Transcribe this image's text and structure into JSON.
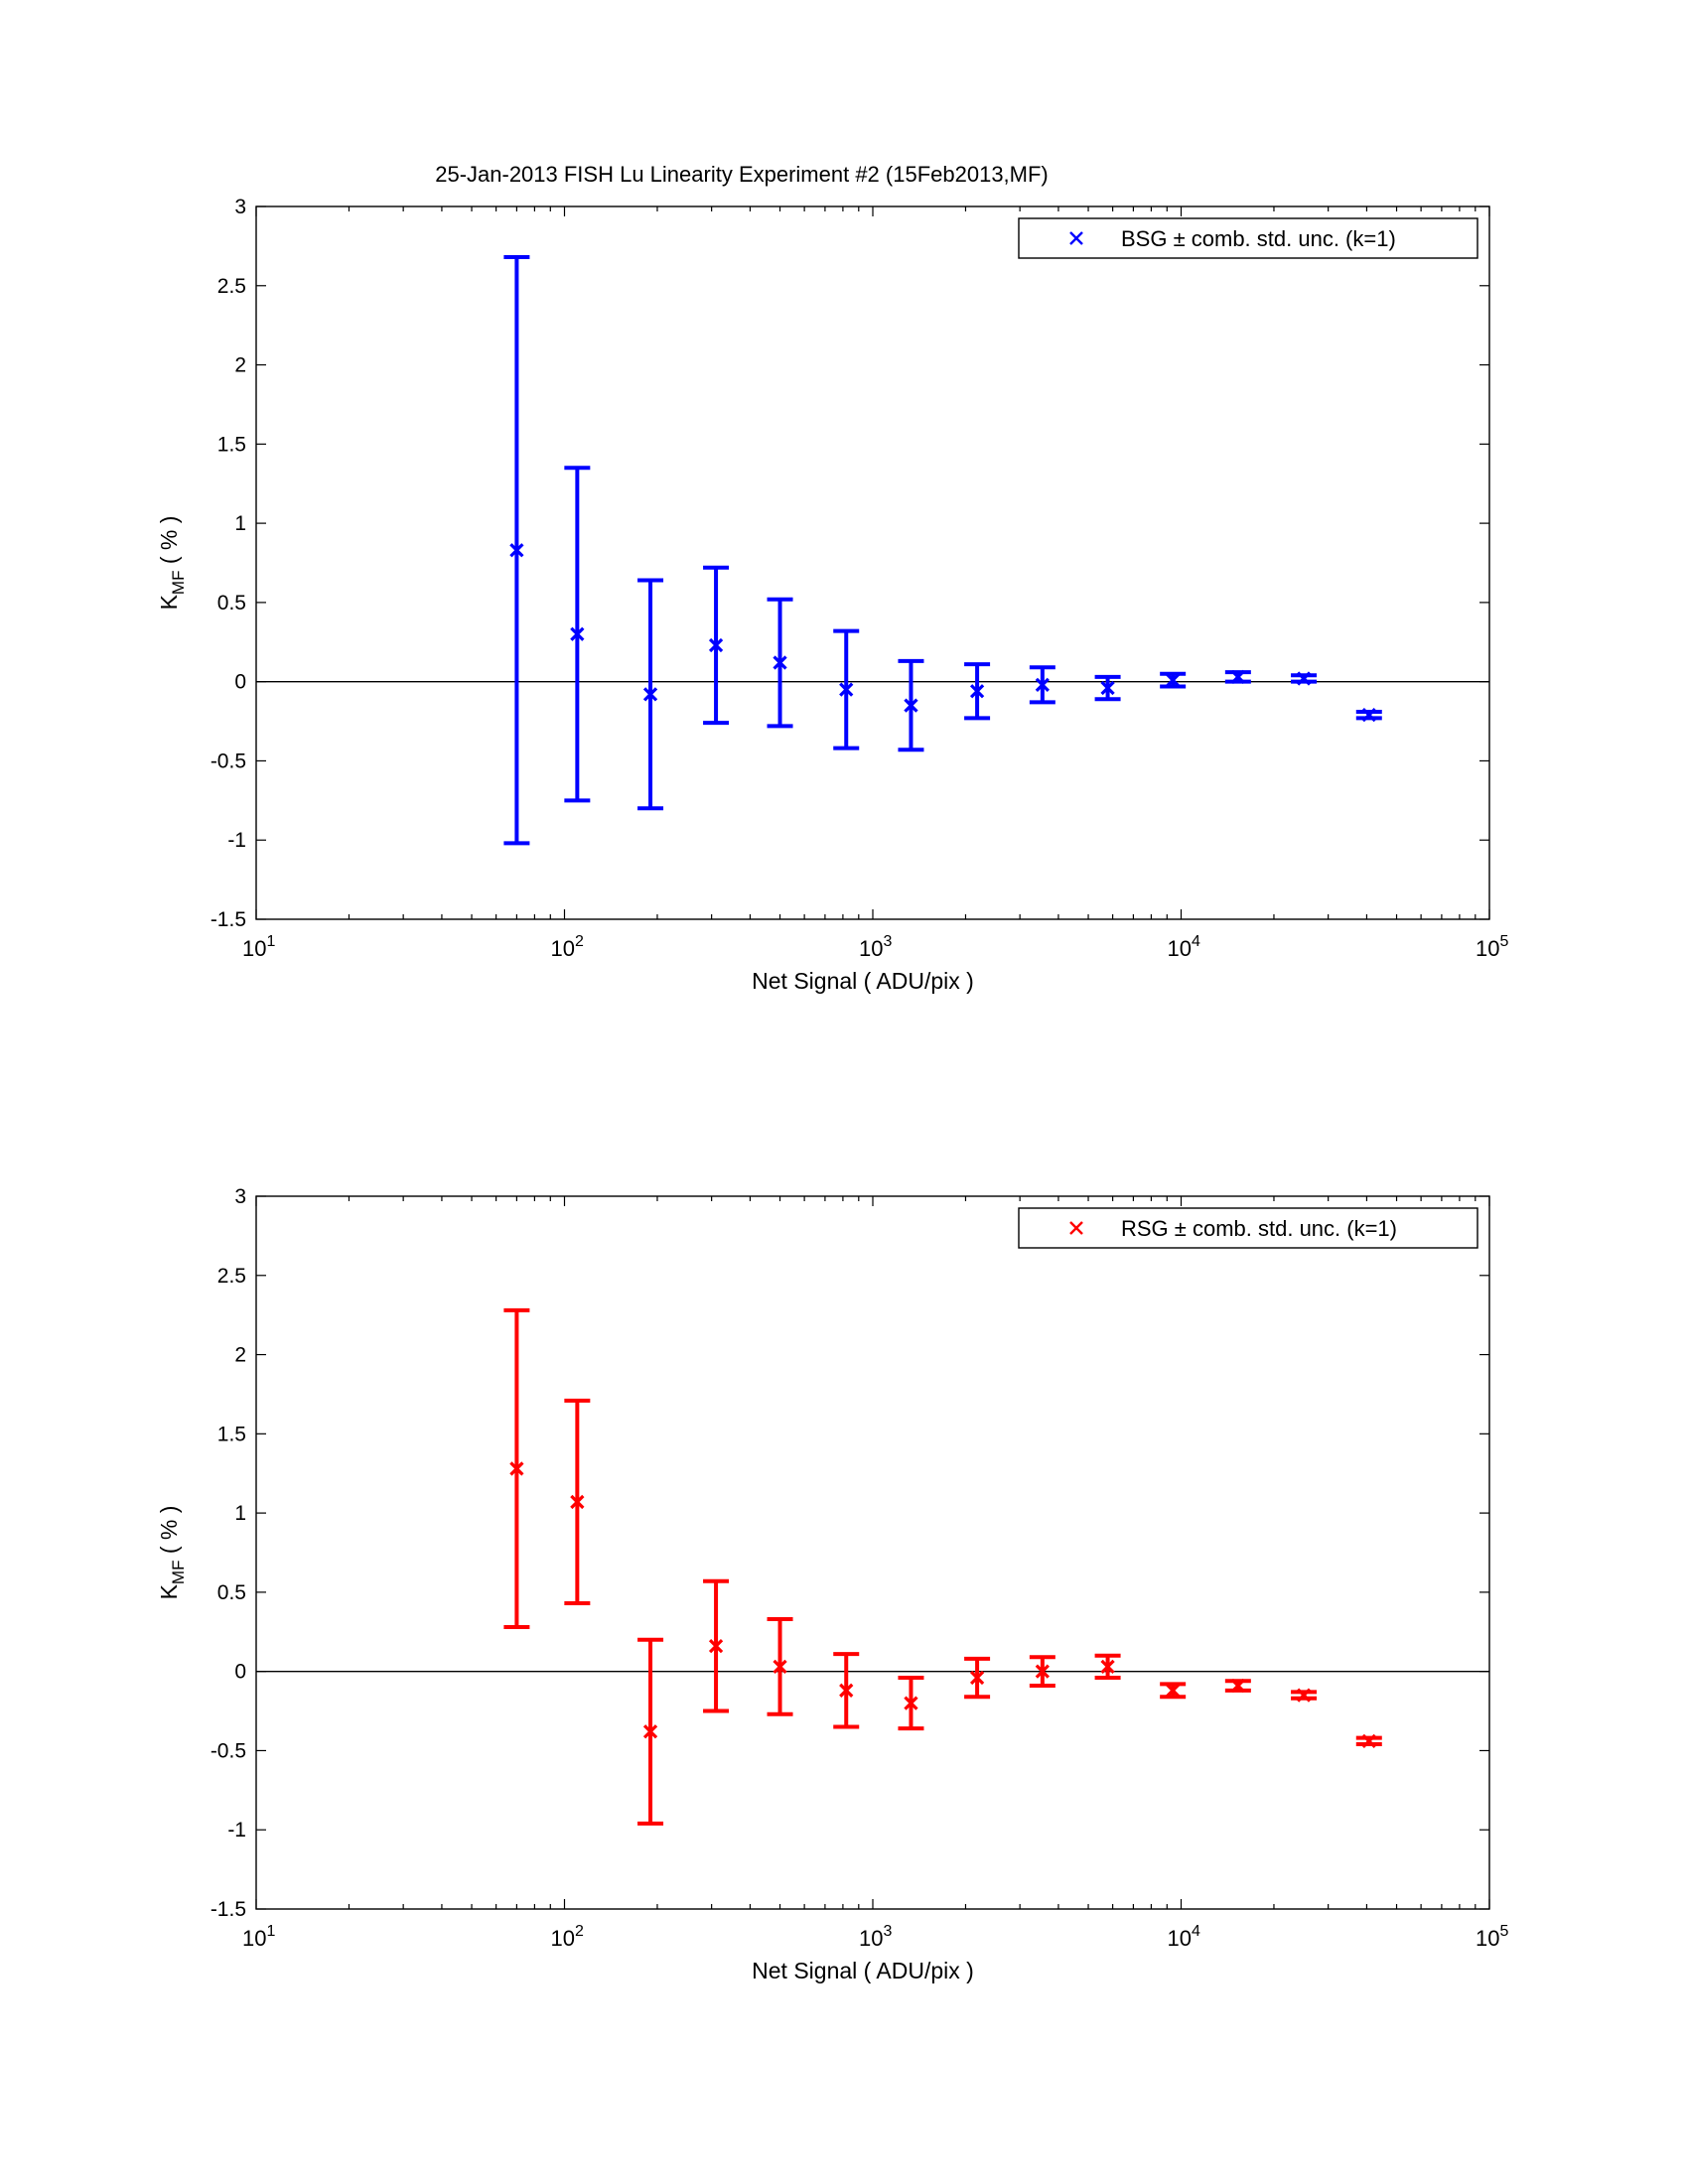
{
  "figure_title": "25-Jan-2013  FISH Lu Linearity Experiment #2  (15Feb2013,MF)",
  "chart_data": [
    {
      "type": "scatter",
      "error_bars": true,
      "xscale": "log",
      "xlim": [
        10,
        100000
      ],
      "ylim": [
        -1.5,
        3
      ],
      "xlabel": "Net Signal  ( ADU/pix )",
      "ylabel_main": "K",
      "ylabel_sub": "MF",
      "ylabel_unit": "  ( % )",
      "x_tick_labels": [
        {
          "base": "10",
          "exp": "1"
        },
        {
          "base": "10",
          "exp": "2"
        },
        {
          "base": "10",
          "exp": "3"
        },
        {
          "base": "10",
          "exp": "4"
        },
        {
          "base": "10",
          "exp": "5"
        }
      ],
      "y_ticks": [
        -1.5,
        -1,
        -0.5,
        0,
        0.5,
        1,
        1.5,
        2,
        2.5,
        3
      ],
      "y_tick_labels": [
        "-1.5",
        "-1",
        "-0.5",
        "0",
        "0.5",
        "1",
        "1.5",
        "2",
        "2.5",
        "3"
      ],
      "zero_line": true,
      "legend_position": "top-right",
      "series": [
        {
          "name": "BSG ± comb. std. unc. (k=1)",
          "color": "#0000ff",
          "x": [
            70,
            110,
            190,
            310,
            500,
            820,
            1330,
            2180,
            3550,
            5780,
            9400,
            15300,
            25000,
            40700
          ],
          "y": [
            0.83,
            0.3,
            -0.08,
            0.23,
            0.12,
            -0.05,
            -0.15,
            -0.06,
            -0.02,
            -0.04,
            0.01,
            0.03,
            0.02,
            -0.21
          ],
          "yerr": [
            1.85,
            1.05,
            0.72,
            0.49,
            0.4,
            0.37,
            0.28,
            0.17,
            0.11,
            0.07,
            0.04,
            0.03,
            0.02,
            0.02
          ]
        }
      ]
    },
    {
      "type": "scatter",
      "error_bars": true,
      "xscale": "log",
      "xlim": [
        10,
        100000
      ],
      "ylim": [
        -1.5,
        3
      ],
      "xlabel": "Net Signal  ( ADU/pix )",
      "ylabel_main": "K",
      "ylabel_sub": "MF",
      "ylabel_unit": "  ( % )",
      "x_tick_labels": [
        {
          "base": "10",
          "exp": "1"
        },
        {
          "base": "10",
          "exp": "2"
        },
        {
          "base": "10",
          "exp": "3"
        },
        {
          "base": "10",
          "exp": "4"
        },
        {
          "base": "10",
          "exp": "5"
        }
      ],
      "y_ticks": [
        -1.5,
        -1,
        -0.5,
        0,
        0.5,
        1,
        1.5,
        2,
        2.5,
        3
      ],
      "y_tick_labels": [
        "-1.5",
        "-1",
        "-0.5",
        "0",
        "0.5",
        "1",
        "1.5",
        "2",
        "2.5",
        "3"
      ],
      "zero_line": true,
      "legend_position": "top-right",
      "series": [
        {
          "name": "RSG ± comb. std. unc. (k=1)",
          "color": "#ff0000",
          "x": [
            70,
            110,
            190,
            310,
            500,
            820,
            1330,
            2180,
            3550,
            5780,
            9400,
            15300,
            25000,
            40700
          ],
          "y": [
            1.28,
            1.07,
            -0.38,
            0.16,
            0.03,
            -0.12,
            -0.2,
            -0.04,
            0.0,
            0.03,
            -0.12,
            -0.09,
            -0.15,
            -0.44
          ],
          "yerr": [
            1.0,
            0.64,
            0.58,
            0.41,
            0.3,
            0.23,
            0.16,
            0.12,
            0.09,
            0.07,
            0.04,
            0.03,
            0.02,
            0.02
          ]
        }
      ]
    }
  ]
}
